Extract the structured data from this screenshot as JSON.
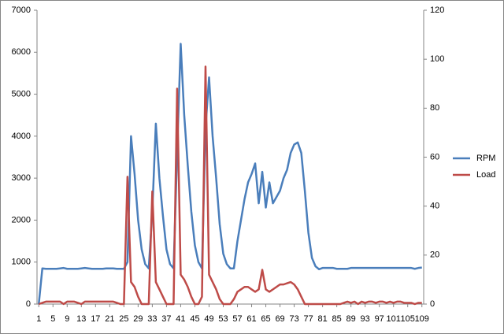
{
  "chart_data": {
    "type": "line",
    "x": [
      1,
      2,
      3,
      4,
      5,
      6,
      7,
      8,
      9,
      10,
      11,
      12,
      13,
      14,
      15,
      16,
      17,
      18,
      19,
      20,
      21,
      22,
      23,
      24,
      25,
      26,
      27,
      28,
      29,
      30,
      31,
      32,
      33,
      34,
      35,
      36,
      37,
      38,
      39,
      40,
      41,
      42,
      43,
      44,
      45,
      46,
      47,
      48,
      49,
      50,
      51,
      52,
      53,
      54,
      55,
      56,
      57,
      58,
      59,
      60,
      61,
      62,
      63,
      64,
      65,
      66,
      67,
      68,
      69,
      70,
      71,
      72,
      73,
      74,
      75,
      76,
      77,
      78,
      79,
      80,
      81,
      82,
      83,
      84,
      85,
      86,
      87,
      88,
      89,
      90,
      91,
      92,
      93,
      94,
      95,
      96,
      97,
      98,
      99,
      100,
      101,
      102,
      103,
      104,
      105,
      106,
      107,
      108,
      109
    ],
    "xlim": [
      0.5,
      109.5
    ],
    "xticks": [
      1,
      5,
      9,
      13,
      17,
      21,
      25,
      29,
      33,
      37,
      41,
      45,
      49,
      53,
      57,
      61,
      65,
      69,
      73,
      77,
      81,
      85,
      89,
      93,
      97,
      101,
      105,
      109
    ],
    "ylim": [
      0,
      7000
    ],
    "yticks": [
      0,
      1000,
      2000,
      3000,
      4000,
      5000,
      6000,
      7000
    ],
    "y2lim": [
      0,
      120
    ],
    "y2ticks": [
      0,
      20,
      40,
      60,
      80,
      100,
      120
    ],
    "legend": "right",
    "series": [
      {
        "name": "RPM",
        "color": "#4a7ebb",
        "values": [
          0,
          850,
          840,
          840,
          840,
          840,
          850,
          860,
          840,
          840,
          840,
          840,
          850,
          860,
          850,
          840,
          840,
          840,
          840,
          850,
          850,
          850,
          840,
          840,
          840,
          1000,
          4000,
          3100,
          2000,
          1300,
          950,
          850,
          2200,
          4300,
          3000,
          2100,
          1300,
          950,
          850,
          3600,
          6200,
          4500,
          3300,
          2200,
          1400,
          1000,
          850,
          4200,
          5400,
          4000,
          3000,
          1900,
          1200,
          950,
          850,
          850,
          1500,
          2000,
          2500,
          2900,
          3100,
          3350,
          2400,
          3150,
          2300,
          2900,
          2400,
          2550,
          2700,
          3000,
          3200,
          3600,
          3800,
          3850,
          3600,
          2700,
          1700,
          1100,
          900,
          830,
          860,
          860,
          860,
          860,
          840,
          840,
          840,
          840,
          860,
          860,
          860,
          860,
          860,
          860,
          860,
          860,
          860,
          860,
          860,
          860,
          860,
          860,
          860,
          860,
          860,
          860,
          840,
          860,
          870
        ]
      },
      {
        "name": "Load",
        "color": "#be4b48",
        "axis": "y2",
        "values": [
          0,
          0.5,
          1,
          1,
          1,
          1,
          1,
          0,
          1,
          1,
          1,
          0.5,
          0,
          1,
          1,
          1,
          1,
          1,
          1,
          1,
          1,
          1,
          0.5,
          0,
          0,
          52,
          9,
          7,
          3,
          0,
          0,
          0,
          46,
          9,
          6,
          3,
          0,
          0,
          0,
          88,
          12,
          10,
          7,
          3,
          0,
          0,
          3,
          97,
          12,
          9,
          6,
          2,
          0,
          0,
          0,
          2,
          5,
          6,
          7,
          7,
          6,
          5,
          6,
          14,
          6,
          5,
          6,
          7,
          8,
          8,
          8.5,
          9,
          8,
          6,
          3,
          0,
          0,
          0,
          0,
          0,
          0,
          0,
          0,
          0,
          0,
          0,
          0.5,
          1,
          0.5,
          1,
          0,
          1,
          0.5,
          1,
          1,
          0.5,
          1,
          1,
          0.5,
          1,
          0.5,
          1,
          1,
          0.5,
          0.5,
          0.5,
          0,
          0.5,
          0.5
        ]
      }
    ]
  }
}
